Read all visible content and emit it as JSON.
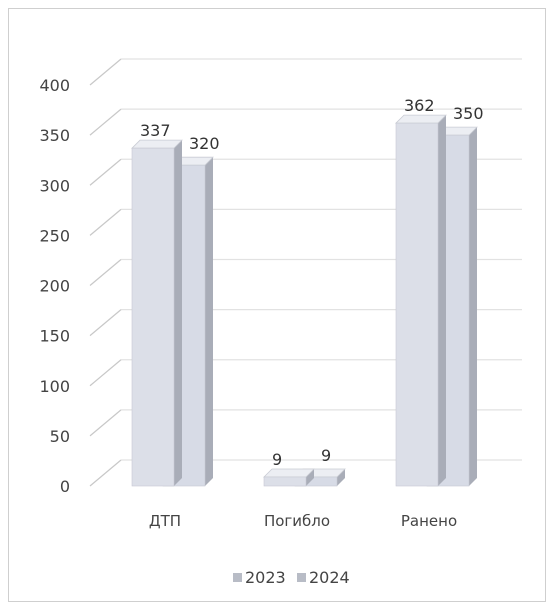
{
  "chart_data": {
    "type": "bar",
    "categories": [
      "ДТП",
      "Погибло",
      "Ранено"
    ],
    "series": [
      {
        "name": "2023",
        "values": [
          337,
          9,
          362
        ],
        "color": "#dcdfe8"
      },
      {
        "name": "2024",
        "values": [
          320,
          9,
          350
        ],
        "color": "#d7dbe6"
      }
    ],
    "ylim": [
      0,
      400
    ],
    "yticks": [
      0,
      50,
      100,
      150,
      200,
      250,
      300,
      350,
      400
    ],
    "grid": true,
    "legend": "bottom",
    "data_labels": true,
    "three_d": true
  }
}
